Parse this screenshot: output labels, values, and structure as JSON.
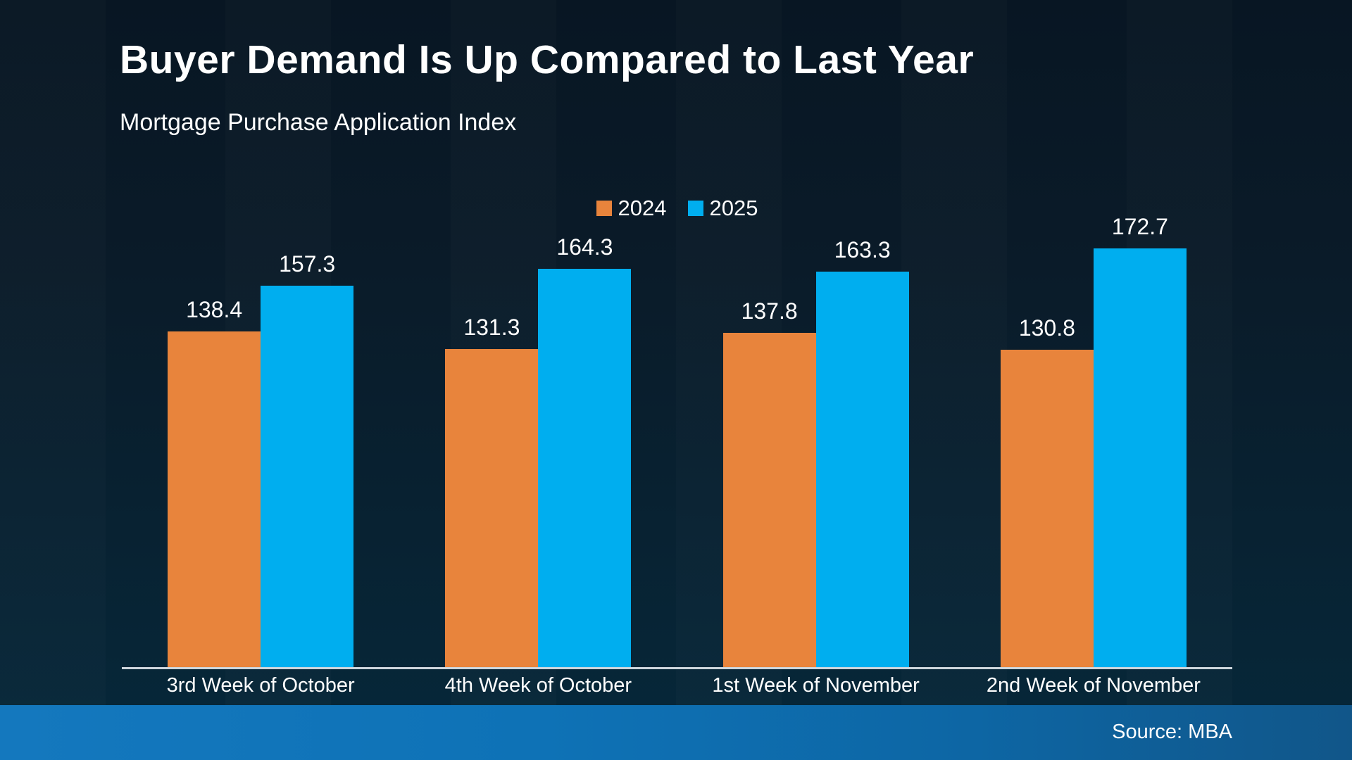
{
  "header": {
    "title": "Buyer Demand Is Up Compared to Last Year",
    "subtitle": "Mortgage Purchase Application Index"
  },
  "footer": {
    "source": "Source: MBA"
  },
  "colors": {
    "background_top": "#081623",
    "background_bottom": "#06283a",
    "series_2024": "#E8843C",
    "series_2025": "#00AEEF",
    "axis_line": "#cdd6dc",
    "footer_left": "#1478be",
    "footer_right": "#115689",
    "text": "#ffffff"
  },
  "chart_data": {
    "type": "bar",
    "title": "Buyer Demand Is Up Compared to Last Year",
    "subtitle": "Mortgage Purchase Application Index",
    "categories": [
      "3rd Week of October",
      "4th Week of October",
      "1st Week of November",
      "2nd Week of November"
    ],
    "series": [
      {
        "name": "2024",
        "color": "#E8843C",
        "values": [
          138.4,
          131.3,
          137.8,
          130.8
        ]
      },
      {
        "name": "2025",
        "color": "#00AEEF",
        "values": [
          157.3,
          164.3,
          163.3,
          172.7
        ]
      }
    ],
    "xlabel": "",
    "ylabel": "",
    "ylim": [
      0,
      180
    ],
    "grid": false,
    "legend_position": "top-center",
    "value_labels": true,
    "source": "Source: MBA"
  }
}
